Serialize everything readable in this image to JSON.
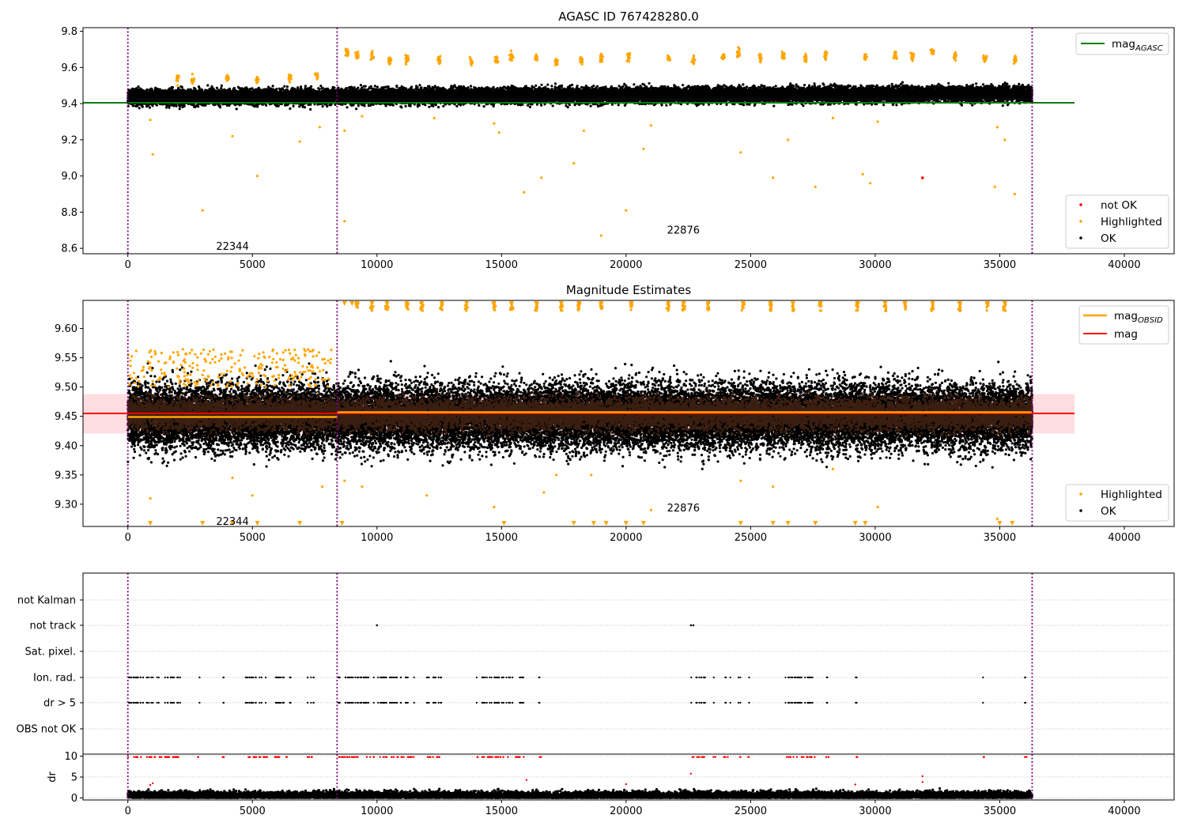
{
  "chart_data": [
    {
      "type": "scatter",
      "title": "AGASC ID 767428280.0",
      "xlim": [
        -1800,
        42000
      ],
      "ylim": [
        8.57,
        9.82
      ],
      "xticks": [
        "0",
        "5000",
        "10000",
        "15000",
        "20000",
        "25000",
        "30000",
        "35000",
        "40000"
      ],
      "yticks": [
        "8.6",
        "8.8",
        "9.0",
        "9.2",
        "9.4",
        "9.6",
        "9.8"
      ],
      "lines": [
        {
          "name": "mag_AGASC",
          "y": 9.405,
          "x": [
            -1800,
            38000
          ],
          "color": "#008000"
        }
      ],
      "series": [
        {
          "name": "not OK",
          "color": "#ff0000",
          "points": [
            [
              31900,
              8.99
            ]
          ]
        },
        {
          "name": "Highlighted",
          "color": "#ffa500",
          "summary": "outliers above ~9.55 and below ~9.38 (8.67–9.71)"
        },
        {
          "name": "OK",
          "color": "#000000",
          "summary": "dense band 9.37–9.56 across x 0–36300"
        }
      ],
      "obsid_boundaries": [
        0,
        8400,
        36300
      ],
      "obsid_labels": [
        {
          "text": "22344",
          "x": 4200,
          "y": 8.61
        },
        {
          "text": "22876",
          "x": 22300,
          "y": 8.7
        }
      ],
      "legend": [
        "mag_AGASC (top-right)",
        "not OK, Highlighted, OK (bottom-right)"
      ],
      "grid": false
    },
    {
      "type": "scatter",
      "title": "Magnitude Estimates",
      "xlim": [
        -1800,
        42000
      ],
      "ylim": [
        9.262,
        9.648
      ],
      "xticks": [
        "0",
        "5000",
        "10000",
        "15000",
        "20000",
        "25000",
        "30000",
        "35000",
        "40000"
      ],
      "yticks": [
        "9.30",
        "9.35",
        "9.40",
        "9.45",
        "9.50",
        "9.55",
        "9.60"
      ],
      "lines": [
        {
          "name": "mag",
          "y": 9.455,
          "x": [
            -1800,
            38000
          ],
          "color": "#ff0000",
          "band": [
            9.421,
            9.488
          ]
        },
        {
          "name": "mag_OBSID",
          "color": "#ffa500",
          "segments": [
            [
              0,
              8400,
              9.449
            ],
            [
              8400,
              36300,
              9.457
            ]
          ]
        }
      ],
      "series": [
        {
          "name": "Highlighted",
          "color": "#ffa500",
          "summary": "points outside 9.40–9.55, triangles clipped at y-limits"
        },
        {
          "name": "OK",
          "color": "#000000",
          "summary": "dense band 9.37–9.55 across x 0–36300"
        }
      ],
      "obsid_boundaries": [
        0,
        8400,
        36300
      ],
      "obsid_labels": [
        {
          "text": "22344",
          "x": 4200,
          "y": 9.27
        },
        {
          "text": "22876",
          "x": 22300,
          "y": 9.293
        }
      ],
      "legend": [
        "mag_OBSID, mag (top-right)",
        "Highlighted, OK (bottom-right)"
      ],
      "grid": false
    },
    {
      "type": "scatter",
      "xlim": [
        -1800,
        42000
      ],
      "categories": [
        "OBS not OK",
        "dr > 5",
        "Ion. rad.",
        "Sat. pixel.",
        "not track",
        "not Kalman"
      ],
      "xticks": [
        "0",
        "5000",
        "10000",
        "15000",
        "20000",
        "25000",
        "30000",
        "35000",
        "40000"
      ],
      "clusters": [
        [
          0,
          2100
        ],
        [
          2800,
          2900
        ],
        [
          3800,
          3900
        ],
        [
          4700,
          5600
        ],
        [
          5900,
          6600
        ],
        [
          7200,
          7500
        ],
        [
          8400,
          9900
        ],
        [
          10000,
          11500
        ],
        [
          12000,
          12600
        ],
        [
          14000,
          15900
        ],
        [
          16500,
          16600
        ],
        [
          22600,
          23200
        ],
        [
          23500,
          23600
        ],
        [
          23900,
          24200
        ],
        [
          24500,
          24600
        ],
        [
          24900,
          25000
        ],
        [
          26400,
          27600
        ],
        [
          28000,
          28200
        ],
        [
          29200,
          29300
        ],
        [
          34300,
          34400
        ],
        [
          36000,
          36100
        ]
      ],
      "not_track": [
        10000,
        22600,
        22700
      ],
      "grid": true
    },
    {
      "type": "scatter",
      "xlim": [
        -1800,
        42000
      ],
      "ylim": [
        -0.5,
        10.5
      ],
      "ylabel": "dr",
      "xticks": [
        "0",
        "5000",
        "10000",
        "15000",
        "20000",
        "25000",
        "30000",
        "35000",
        "40000"
      ],
      "yticks": [
        "0",
        "5",
        "10"
      ],
      "series": [
        {
          "name": "dr",
          "color": "#000000",
          "summary": "dense band 0–2 across x 0–36300"
        },
        {
          "name": "dr > 5",
          "color": "#ff0000",
          "summary": "red markers at dr = 10 aligned with flagged clusters"
        }
      ],
      "grid": true
    }
  ]
}
